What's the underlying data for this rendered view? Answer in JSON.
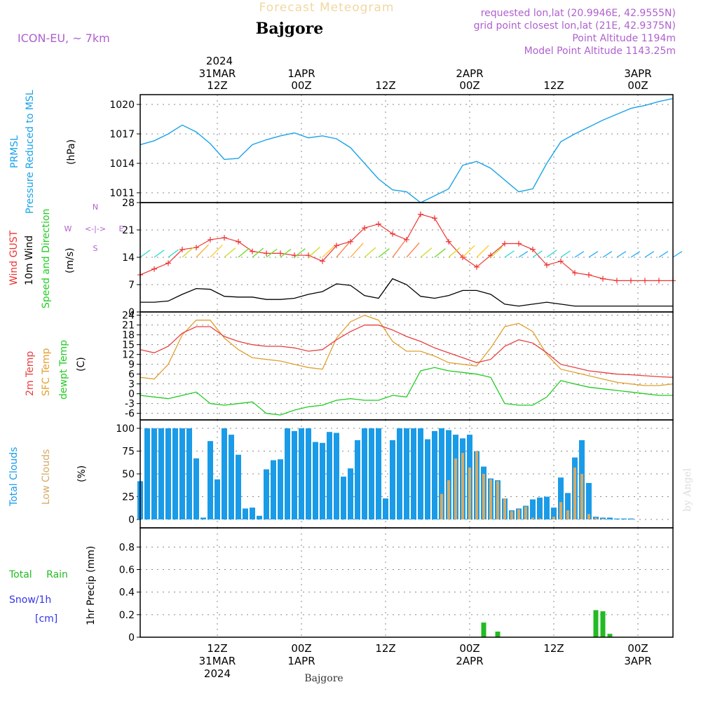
{
  "header": {
    "title_top": "Forecast Meteogram",
    "location": "Bajgore",
    "model": "ICON-EU, ~ 7km",
    "info": [
      "requested lon,lat (20.9946E, 42.9555N)",
      "grid point closest lon,lat (21E, 42.9375N)",
      "Point Altitude 1194m",
      "Model Point Altitude 1143.25m"
    ],
    "footer_location": "Bajgore",
    "watermark": "by Angel"
  },
  "time_axis": {
    "top_year": "2024",
    "ticks": [
      {
        "hour": 12,
        "line1": "31MAR",
        "line2": "12Z"
      },
      {
        "hour": 24,
        "line1": "1APR",
        "line2": "00Z"
      },
      {
        "hour": 36,
        "line1": "",
        "line2": "12Z"
      },
      {
        "hour": 48,
        "line1": "2APR",
        "line2": "00Z"
      },
      {
        "hour": 60,
        "line1": "",
        "line2": "12Z"
      },
      {
        "hour": 72,
        "line1": "3APR",
        "line2": "00Z"
      }
    ],
    "bottom_ticks": [
      {
        "hour": 12,
        "l1": "12Z",
        "l2": "31MAR",
        "l3": "2024"
      },
      {
        "hour": 24,
        "l1": "00Z",
        "l2": "1APR",
        "l3": ""
      },
      {
        "hour": 36,
        "l1": "12Z",
        "l2": "",
        "l3": ""
      },
      {
        "hour": 48,
        "l1": "00Z",
        "l2": "2APR",
        "l3": ""
      },
      {
        "hour": 60,
        "l1": "12Z",
        "l2": "",
        "l3": ""
      },
      {
        "hour": 72,
        "l1": "00Z",
        "l2": "3APR",
        "l3": ""
      }
    ],
    "xlim": [
      1,
      77
    ]
  },
  "panels": {
    "pressure": {
      "label1": "PRMSL",
      "label2": "Pressure Reduced to MSL",
      "unit": "(hPa)",
      "ticks": [
        "1011",
        "1014",
        "1017",
        "1020"
      ]
    },
    "wind": {
      "label_gust": "Wind GUST",
      "label_wind": "10m Wind",
      "label_dir": "Speed and Direction",
      "unit": "(m/s)",
      "compass": "N W <-|-> E S",
      "ticks": [
        "0",
        "7",
        "14",
        "21",
        "28"
      ]
    },
    "temp": {
      "label_t": "2m Temp",
      "label_sfc": "SFC Temp",
      "label_dew": "dewpt Temp",
      "unit": "(C)",
      "ticks": [
        "-6",
        "-3",
        "0",
        "3",
        "6",
        "9",
        "12",
        "15",
        "18",
        "21",
        "24"
      ]
    },
    "clouds": {
      "label_total": "Total Clouds",
      "label_low": "Low Clouds",
      "unit": "(%)",
      "ticks": [
        "0",
        "25",
        "50",
        "75",
        "100"
      ]
    },
    "precip": {
      "label_rain": "Total Rain",
      "label_snow": "Snow/1h",
      "label_cm": "[cm]",
      "unit": "1hr Precip (mm)",
      "ticks": [
        "0",
        "0.2",
        "0.4",
        "0.6",
        "0.8"
      ]
    }
  },
  "colors": {
    "pressure": "#1aa3e8",
    "gust": "#ee3333",
    "wind": "#000000",
    "temp": "#e84040",
    "sfc": "#e0a030",
    "dew": "#22cc22",
    "total_clouds": "#1a9be8",
    "low_clouds": "#d4aa66",
    "rain": "#22bb22",
    "snow": "#3333ee",
    "model": "#b060d0",
    "title_top": "#f0d8a0"
  },
  "chart_data": [
    {
      "type": "line",
      "name": "PRMSL",
      "x_hours": [
        1,
        3,
        5,
        7,
        9,
        11,
        13,
        15,
        17,
        19,
        21,
        23,
        25,
        27,
        29,
        31,
        33,
        35,
        37,
        39,
        41,
        43,
        45,
        47,
        49,
        51,
        53,
        55,
        57,
        59,
        61,
        63,
        65,
        67,
        69,
        71,
        73,
        75,
        77
      ],
      "y": [
        1015.9,
        1016.3,
        1017.0,
        1017.9,
        1017.2,
        1016.0,
        1014.4,
        1014.5,
        1015.9,
        1016.4,
        1016.8,
        1017.1,
        1016.6,
        1016.8,
        1016.5,
        1015.6,
        1014.0,
        1012.4,
        1011.3,
        1011.1,
        1010.0,
        1010.7,
        1011.4,
        1013.8,
        1014.2,
        1013.5,
        1012.3,
        1011.1,
        1011.4,
        1014.0,
        1016.2,
        1017.0,
        1017.7,
        1018.4,
        1019.0,
        1019.6,
        1019.9,
        1020.3,
        1020.6
      ],
      "ylim": [
        1010,
        1021
      ]
    },
    {
      "type": "line",
      "name": "Wind gust / 10m wind",
      "x_hours": [
        1,
        3,
        5,
        7,
        9,
        11,
        13,
        15,
        17,
        19,
        21,
        23,
        25,
        27,
        29,
        31,
        33,
        35,
        37,
        39,
        41,
        43,
        45,
        47,
        49,
        51,
        53,
        55,
        57,
        59,
        61,
        63,
        65,
        67,
        69,
        71,
        73,
        75,
        77
      ],
      "gust": [
        9.5,
        11,
        12.5,
        16,
        16.5,
        18.5,
        19,
        18,
        15.5,
        15,
        15,
        14.5,
        14.5,
        13,
        17,
        18,
        21.5,
        22.5,
        20,
        18.5,
        25,
        24,
        18,
        14,
        11.5,
        14.5,
        17.5,
        17.5,
        16,
        12,
        13,
        10,
        9.5,
        8.5,
        8,
        8,
        8,
        8,
        8
      ],
      "wind": [
        2.5,
        2.5,
        2.8,
        4.5,
        6,
        5.8,
        4,
        3.8,
        3.8,
        3.2,
        3.2,
        3.5,
        4.5,
        5.2,
        7.2,
        6.8,
        4.2,
        3.5,
        8.5,
        7,
        4,
        3.5,
        4.2,
        5.5,
        5.5,
        4.5,
        2,
        1.5,
        2,
        2.5,
        2,
        1.5,
        1.5,
        1.5,
        1.5,
        1.5,
        1.5,
        1.5,
        1.5
      ],
      "ylim": [
        0,
        28
      ]
    },
    {
      "type": "line",
      "name": "Temperatures",
      "x_hours": [
        1,
        3,
        5,
        7,
        9,
        11,
        13,
        15,
        17,
        19,
        21,
        23,
        25,
        27,
        29,
        31,
        33,
        35,
        37,
        39,
        41,
        43,
        45,
        47,
        49,
        51,
        53,
        55,
        57,
        59,
        61,
        63,
        65,
        67,
        69,
        71,
        73,
        75,
        77
      ],
      "t2m": [
        13.5,
        12.5,
        14.5,
        18.5,
        20.5,
        20.5,
        17.5,
        16,
        15,
        14.5,
        14.5,
        14,
        13,
        13.5,
        16.5,
        19,
        21,
        21,
        19.5,
        17.5,
        16,
        14,
        12.5,
        11,
        9.5,
        10.5,
        14.5,
        16.5,
        15.5,
        12.5,
        9,
        8,
        7,
        6.5,
        6,
        5.8,
        5.5,
        5.2,
        5
      ],
      "sfc": [
        5,
        4.5,
        9,
        18,
        22.5,
        22.5,
        17,
        13.5,
        11,
        10.5,
        10,
        9,
        8,
        7.5,
        17,
        22,
        24,
        22.5,
        16,
        13,
        13,
        11.5,
        9.5,
        9,
        8.5,
        14,
        20.5,
        21.5,
        19,
        12,
        7.5,
        6.5,
        5.5,
        4.5,
        3.5,
        3,
        2.5,
        2.5,
        3
      ],
      "dew": [
        -0.5,
        -1,
        -1.5,
        -0.5,
        0.5,
        -3,
        -3.5,
        -3,
        -2.5,
        -6,
        -6.5,
        -5,
        -4,
        -3.5,
        -2,
        -1.5,
        -2,
        -2,
        -0.5,
        -1,
        7,
        8,
        7,
        6.5,
        6,
        5,
        -3,
        -3.5,
        -3.5,
        -1,
        4,
        3,
        2,
        1.5,
        1,
        0.5,
        0,
        -0.5,
        -0.5
      ],
      "ylim": [
        -8,
        25
      ]
    },
    {
      "type": "bar",
      "name": "Clouds",
      "x_hours": [
        1,
        2,
        3,
        4,
        5,
        6,
        7,
        8,
        9,
        10,
        11,
        12,
        13,
        14,
        15,
        16,
        17,
        18,
        19,
        20,
        21,
        22,
        23,
        24,
        25,
        26,
        27,
        28,
        29,
        30,
        31,
        32,
        33,
        34,
        35,
        36,
        37,
        38,
        39,
        40,
        41,
        42,
        43,
        44,
        45,
        46,
        47,
        48,
        49,
        50,
        51,
        52,
        53,
        54,
        55,
        56,
        57,
        58,
        59,
        60,
        61,
        62,
        63,
        64,
        65,
        66,
        67,
        68,
        69,
        70,
        71,
        72,
        73,
        74,
        75,
        76
      ],
      "total": [
        42,
        100,
        100,
        100,
        100,
        100,
        100,
        100,
        67,
        2,
        86,
        44,
        100,
        93,
        71,
        12,
        13,
        4,
        55,
        65,
        66,
        100,
        97,
        100,
        100,
        85,
        84,
        96,
        95,
        47,
        56,
        87,
        100,
        100,
        100,
        23,
        87,
        100,
        100,
        100,
        100,
        88,
        97,
        100,
        98,
        93,
        89,
        93,
        75,
        58,
        45,
        43,
        23,
        10,
        12,
        15,
        22,
        24,
        25,
        13,
        46,
        29,
        68,
        87,
        40,
        3,
        2,
        2,
        1,
        1,
        1,
        0,
        0,
        0,
        0,
        0
      ],
      "low": [
        0,
        0,
        0,
        0,
        0,
        0,
        0,
        0,
        0,
        0,
        0,
        0,
        0,
        0,
        0,
        0,
        0,
        0,
        0,
        0,
        0,
        0,
        0,
        0,
        0,
        0,
        0,
        0,
        0,
        0,
        0,
        0,
        0,
        0,
        0,
        0,
        0,
        0,
        0,
        0,
        0,
        0,
        0,
        28,
        43,
        67,
        73,
        57,
        75,
        50,
        44,
        42,
        23,
        9,
        11,
        14,
        2,
        1,
        0,
        3,
        19,
        10,
        57,
        50,
        6,
        2,
        1,
        0,
        0,
        0,
        0,
        0,
        0,
        0,
        0,
        0
      ],
      "ylim": [
        0,
        100
      ]
    },
    {
      "type": "bar",
      "name": "1hr Precip",
      "x_hours": [
        50,
        52,
        66,
        67,
        68
      ],
      "rain": [
        0.13,
        0.05,
        0.24,
        0.23,
        0.03
      ],
      "snow": [
        0,
        0,
        0,
        0,
        0
      ],
      "ylim": [
        0,
        0.97
      ]
    }
  ]
}
